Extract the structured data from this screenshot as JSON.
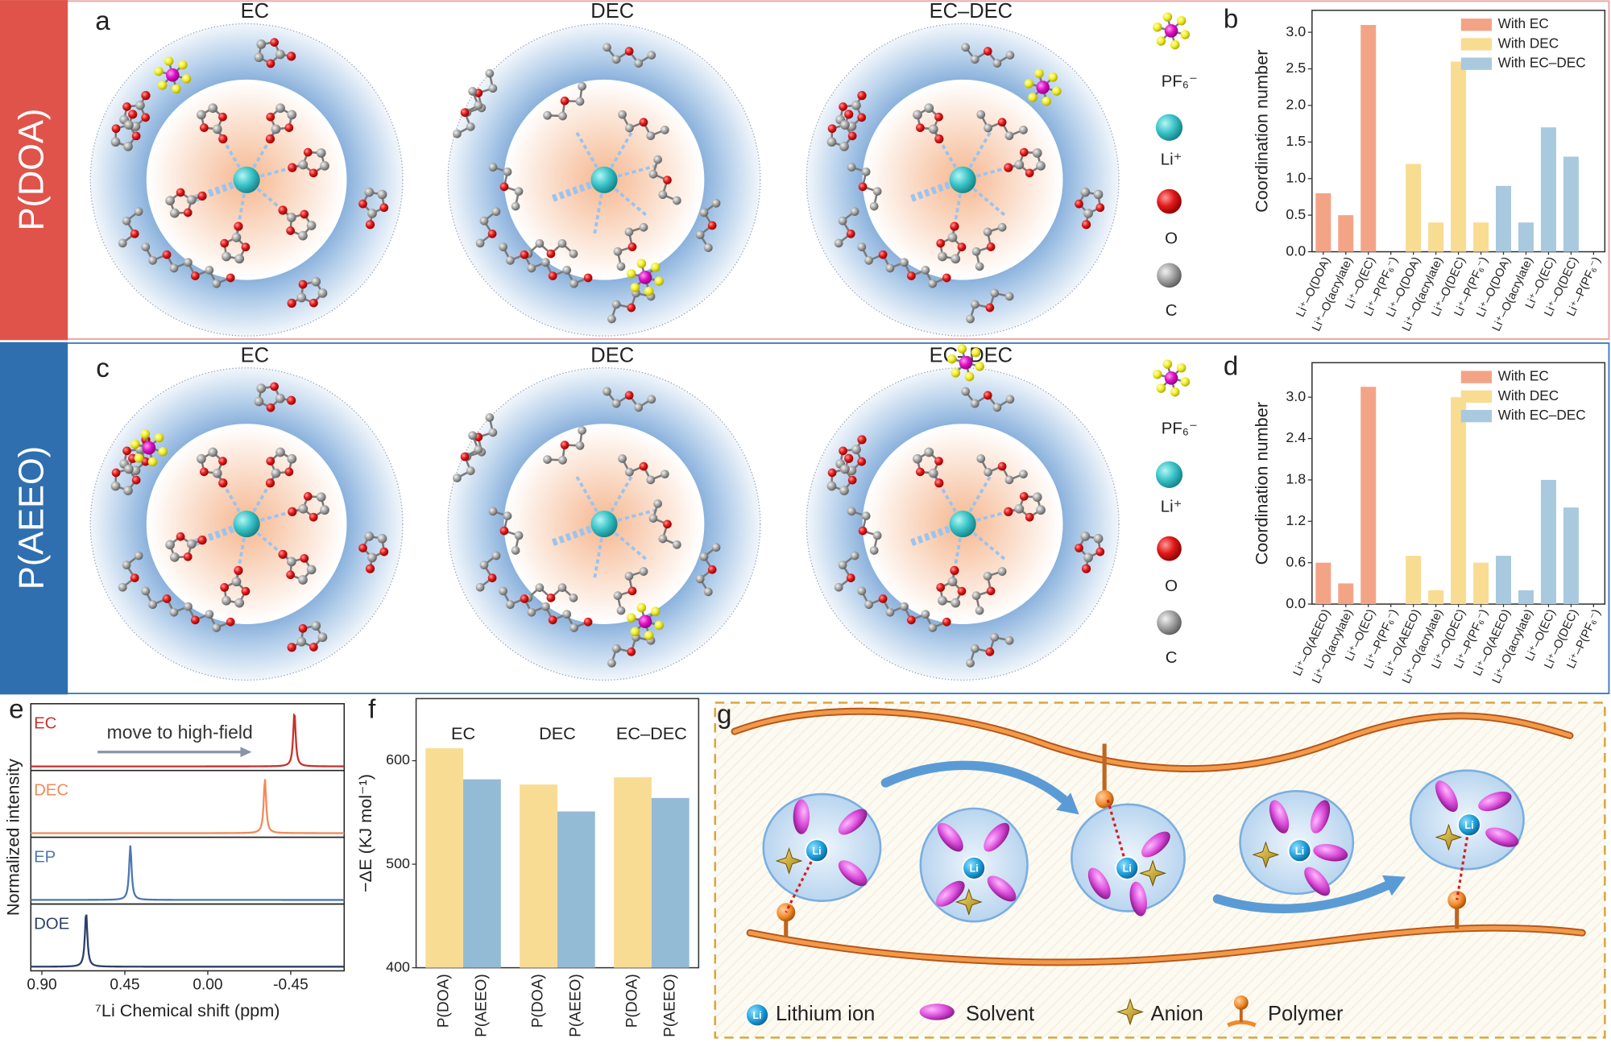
{
  "panel_labels": [
    "a",
    "b",
    "c",
    "d",
    "e",
    "f",
    "g"
  ],
  "row_labels": [
    "P(DOA)",
    "P(AEEO)"
  ],
  "diagram_titles": [
    "EC",
    "DEC",
    "EC–DEC"
  ],
  "species_legend": [
    "PF₆⁻",
    "Li⁺",
    "O",
    "C"
  ],
  "schematic": {
    "legend": [
      "Lithium ion",
      "Solvent",
      "Anion",
      "Polymer"
    ],
    "li_symbol": "Li"
  },
  "chart_data": [
    {
      "type": "bar",
      "y_label": "Coordination number",
      "legend": "upper right",
      "categories": [
        "Li⁺–O(DOA)",
        "Li⁺–O(acrylate)",
        "Li⁺–O(EC)",
        "Li⁺–P(PF₆⁻)",
        "Li⁺–O(DOA)",
        "Li⁺–O(acrylate)",
        "Li⁺–O(DEC)",
        "Li⁺–P(PF₆⁻)",
        "Li⁺–O(DOA)",
        "Li⁺–O(acrylate)",
        "Li⁺–O(EC)",
        "Li⁺–O(DEC)",
        "Li⁺–P(PF₆⁻)"
      ],
      "series": [
        {
          "name": "With EC",
          "color": "#f4a486",
          "values": [
            0.8,
            0.5,
            3.1,
            0,
            null,
            null,
            null,
            null,
            null,
            null,
            null,
            null,
            null
          ]
        },
        {
          "name": "With DEC",
          "color": "#f8dc92",
          "values": [
            null,
            null,
            null,
            null,
            1.2,
            0.4,
            2.6,
            0.4,
            null,
            null,
            null,
            null,
            null
          ]
        },
        {
          "name": "With EC–DEC",
          "color": "#a9c9df",
          "values": [
            null,
            null,
            null,
            null,
            null,
            null,
            null,
            null,
            0.9,
            0.4,
            1.7,
            1.3,
            0
          ]
        }
      ],
      "ylim": [
        0,
        3.3
      ],
      "yticks": [
        {
          "value": 0,
          "label": "0.0"
        },
        0.5,
        {
          "value": 1,
          "label": "1.0"
        },
        1.5,
        {
          "value": 2,
          "label": "2.0"
        },
        2.5,
        {
          "value": 3,
          "label": "3.0"
        }
      ]
    },
    {
      "type": "bar",
      "y_label": "Coordination number",
      "legend": "upper right",
      "categories": [
        "Li⁺–O(AEEO)",
        "Li⁺–O(acrylate)",
        "Li⁺–O(EC)",
        "Li⁺–P(PF₆⁻)",
        "Li⁺–O(AEEO)",
        "Li⁺–O(acrylate)",
        "Li⁺–O(DEC)",
        "Li⁺–P(PF₆⁻)",
        "Li⁺–O(AEEO)",
        "Li⁺–O(acrylate)",
        "Li⁺–O(EC)",
        "Li⁺–O(DEC)",
        "Li⁺–P(PF₆⁻)"
      ],
      "series": [
        {
          "name": "With EC",
          "color": "#f4a486",
          "values": [
            0.6,
            0.3,
            3.15,
            0,
            null,
            null,
            null,
            null,
            null,
            null,
            null,
            null,
            null
          ]
        },
        {
          "name": "With DEC",
          "color": "#f8dc92",
          "values": [
            null,
            null,
            null,
            null,
            0.7,
            0.2,
            3.0,
            0.6,
            null,
            null,
            null,
            null,
            null
          ]
        },
        {
          "name": "With EC–DEC",
          "color": "#a9c9df",
          "values": [
            null,
            null,
            null,
            null,
            null,
            null,
            null,
            null,
            0.7,
            0.2,
            1.8,
            1.4,
            0
          ]
        }
      ],
      "ylim": [
        0,
        3.5
      ],
      "yticks": [
        {
          "value": 0,
          "label": "0.0"
        },
        0.6,
        1.2,
        1.8,
        2.4,
        {
          "value": 3,
          "label": "3.0"
        }
      ]
    },
    {
      "type": "spectrum",
      "x_label": "⁷Li Chemical shift (ppm)",
      "y_label": "Normalized intensity",
      "annotation": "move to high-field",
      "xlim": [
        0.96,
        -0.74
      ],
      "xticks": [
        {
          "value": 0.9,
          "label": "0.90"
        },
        0.45,
        {
          "value": 0,
          "label": "0.00"
        },
        -0.45
      ],
      "series": [
        {
          "name": "EC",
          "color": "#c8302c",
          "peak": -0.47
        },
        {
          "name": "DEC",
          "color": "#f08a5a",
          "peak": -0.31
        },
        {
          "name": "EP",
          "color": "#4a78b0",
          "peak": 0.42
        },
        {
          "name": "DOE",
          "color": "#2a3f6b",
          "peak": 0.66
        }
      ]
    },
    {
      "type": "bar",
      "y_label": "−ΔE (KJ mol⁻¹)",
      "categories": [
        "EC",
        "DEC",
        "EC–DEC"
      ],
      "series": [
        {
          "name": "P(DOA)",
          "color": "#f9dc94",
          "values": [
            612,
            577,
            584
          ]
        },
        {
          "name": "P(AEEO)",
          "color": "#94bbd5",
          "values": [
            582,
            551,
            564
          ]
        }
      ],
      "ylim": [
        400,
        660
      ],
      "yticks": [
        400,
        500,
        600
      ]
    }
  ]
}
